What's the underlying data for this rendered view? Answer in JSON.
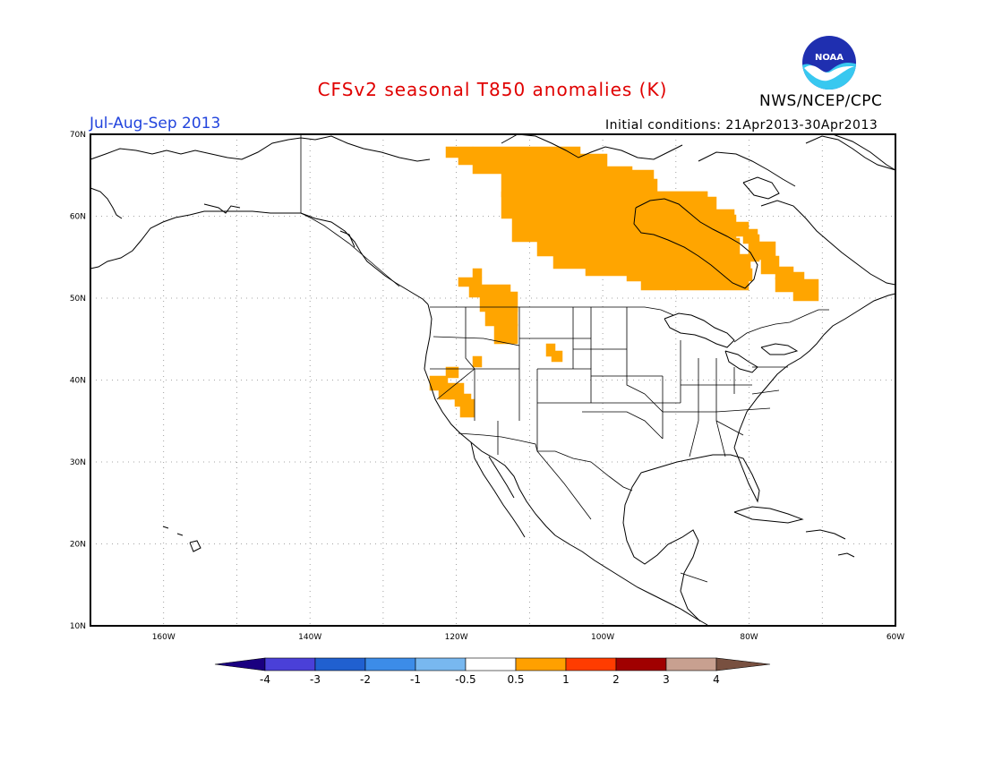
{
  "header": {
    "title": "CFSv2 seasonal T850 anomalies (K)",
    "period": "Jul-Aug-Sep 2013",
    "initial_conditions": "Initial conditions: 21Apr2013-30Apr2013",
    "org": "NWS/NCEP/CPC",
    "logo_text": "NOAA",
    "title_color": "#e00000",
    "period_color": "#2244dd"
  },
  "map": {
    "region": "North America",
    "lon_range": [
      -170,
      -60
    ],
    "lat_range": [
      10,
      70
    ],
    "x_ticks": [
      "160W",
      "140W",
      "120W",
      "100W",
      "80W",
      "60W"
    ],
    "y_ticks": [
      "10N",
      "20N",
      "30N",
      "40N",
      "50N",
      "60N",
      "70N"
    ],
    "anomaly_color": "#ffa500",
    "anomaly_level": "0.5 to 1 K",
    "anomaly_regions": [
      "northern Canada / Hudson Bay",
      "Pacific Northwest",
      "Wyoming",
      "California / Nevada"
    ]
  },
  "legend": {
    "labels": [
      "-4",
      "-3",
      "-2",
      "-1",
      "-0.5",
      "0.5",
      "1",
      "2",
      "3",
      "4"
    ],
    "colors": [
      "#1a0080",
      "#4a40d8",
      "#2060d0",
      "#3c8ce8",
      "#78b8f0",
      "#ffffff",
      "#ffa000",
      "#ff3c00",
      "#a00000",
      "#c8a090",
      "#785040"
    ]
  }
}
